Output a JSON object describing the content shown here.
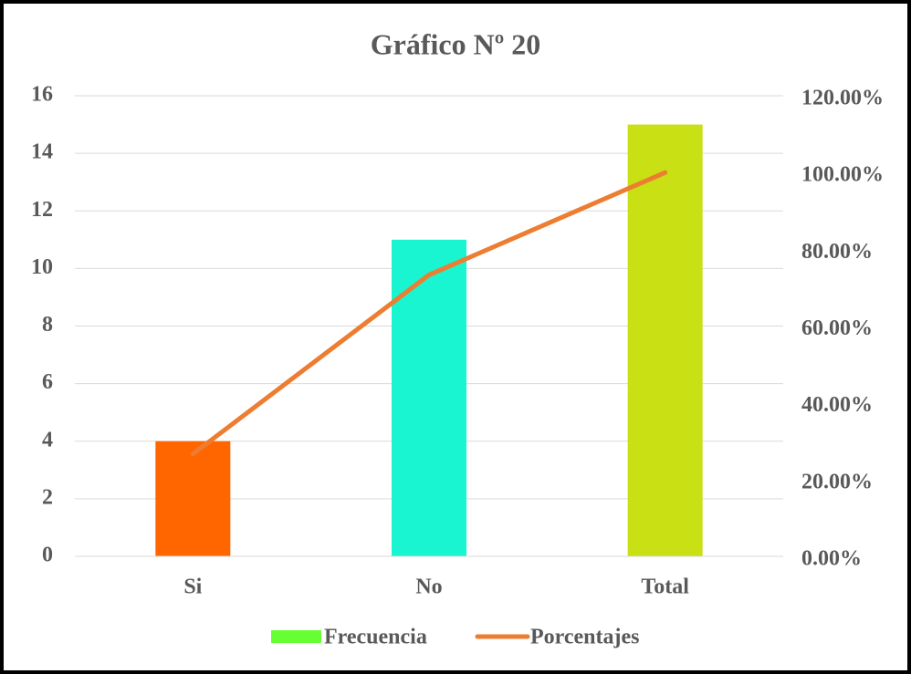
{
  "chart_data": {
    "type": "bar",
    "title": "Gráfico Nº 20",
    "categories": [
      "Si",
      "No",
      "Total"
    ],
    "series": [
      {
        "name": "Frecuencia",
        "type": "bar",
        "color": "#66ff33",
        "colors": [
          "#ff6600",
          "#19f5d0",
          "#c8e014"
        ],
        "values": [
          4,
          11,
          15
        ]
      },
      {
        "name": "Porcentajes",
        "type": "line",
        "axis": "y2",
        "color": "#ed7d31",
        "values": [
          26.67,
          73.33,
          100
        ]
      }
    ],
    "ylim": [
      0,
      16
    ],
    "yticks": [
      0,
      2,
      4,
      6,
      8,
      10,
      12,
      14,
      16
    ],
    "y2lim": [
      0,
      120
    ],
    "y2ticks": [
      {
        "value": 0,
        "label": "0.00%"
      },
      {
        "value": 20,
        "label": "20.00%"
      },
      {
        "value": 40,
        "label": "40.00%"
      },
      {
        "value": 60,
        "label": "60.00%"
      },
      {
        "value": 80,
        "label": "80.00%"
      },
      {
        "value": 100,
        "label": "100.00%"
      },
      {
        "value": 120,
        "label": "120.00%"
      }
    ],
    "grid": true,
    "legend": "bottom"
  }
}
